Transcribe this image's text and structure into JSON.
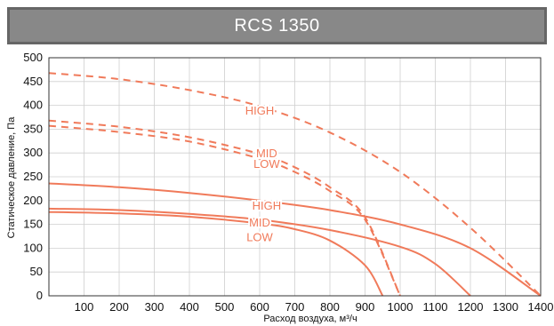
{
  "title": "RCS 1350",
  "chart_data": {
    "type": "line",
    "title": "RCS 1350",
    "xlabel": "Расход воздуха, м³/ч",
    "ylabel": "Статическое давление, Па",
    "xlim": [
      0,
      1400
    ],
    "ylim": [
      0,
      500
    ],
    "xticks": [
      100,
      200,
      300,
      400,
      500,
      600,
      700,
      800,
      900,
      1000,
      1100,
      1200,
      1300,
      1400
    ],
    "xtick_labels": [
      "100",
      "200",
      "300",
      "400",
      "500",
      "600",
      "700",
      "800",
      "900",
      "1000",
      "1100",
      "1200",
      "1300",
      "1400"
    ],
    "yticks": [
      0,
      50,
      100,
      150,
      200,
      250,
      300,
      350,
      400,
      450,
      500
    ],
    "ytick_labels": [
      "0",
      "50",
      "100",
      "150",
      "200",
      "250",
      "300",
      "350",
      "400",
      "450",
      "500"
    ],
    "grid": true,
    "color": "#f07a5a",
    "series": [
      {
        "name": "HIGH",
        "style": "dashed",
        "x": [
          0,
          200,
          400,
          600,
          800,
          1000,
          1200,
          1400
        ],
        "y": [
          468,
          455,
          432,
          398,
          343,
          260,
          143,
          0
        ],
        "label_at": [
          600,
          390
        ]
      },
      {
        "name": "MID",
        "style": "dashed",
        "x": [
          0,
          200,
          400,
          600,
          700,
          800,
          900,
          1000
        ],
        "y": [
          368,
          355,
          333,
          298,
          270,
          228,
          165,
          0
        ],
        "label_at": [
          620,
          300
        ]
      },
      {
        "name": "LOW",
        "style": "dashed",
        "x": [
          0,
          200,
          400,
          600,
          700,
          800,
          900,
          1000
        ],
        "y": [
          357,
          344,
          324,
          288,
          260,
          220,
          160,
          0
        ],
        "label_at": [
          620,
          278
        ]
      },
      {
        "name": "HIGH",
        "style": "solid",
        "x": [
          0,
          200,
          400,
          600,
          800,
          1000,
          1200,
          1400
        ],
        "y": [
          236,
          228,
          216,
          200,
          180,
          150,
          100,
          0
        ],
        "label_at": [
          620,
          190
        ]
      },
      {
        "name": "MID",
        "style": "solid",
        "x": [
          0,
          200,
          400,
          600,
          800,
          1000,
          1100,
          1200
        ],
        "y": [
          183,
          180,
          172,
          160,
          138,
          103,
          67,
          0
        ],
        "label_at": [
          600,
          155
        ]
      },
      {
        "name": "LOW",
        "style": "solid",
        "x": [
          0,
          200,
          400,
          600,
          700,
          800,
          900,
          950
        ],
        "y": [
          176,
          173,
          166,
          152,
          140,
          116,
          64,
          0
        ],
        "label_at": [
          600,
          124
        ]
      }
    ]
  }
}
